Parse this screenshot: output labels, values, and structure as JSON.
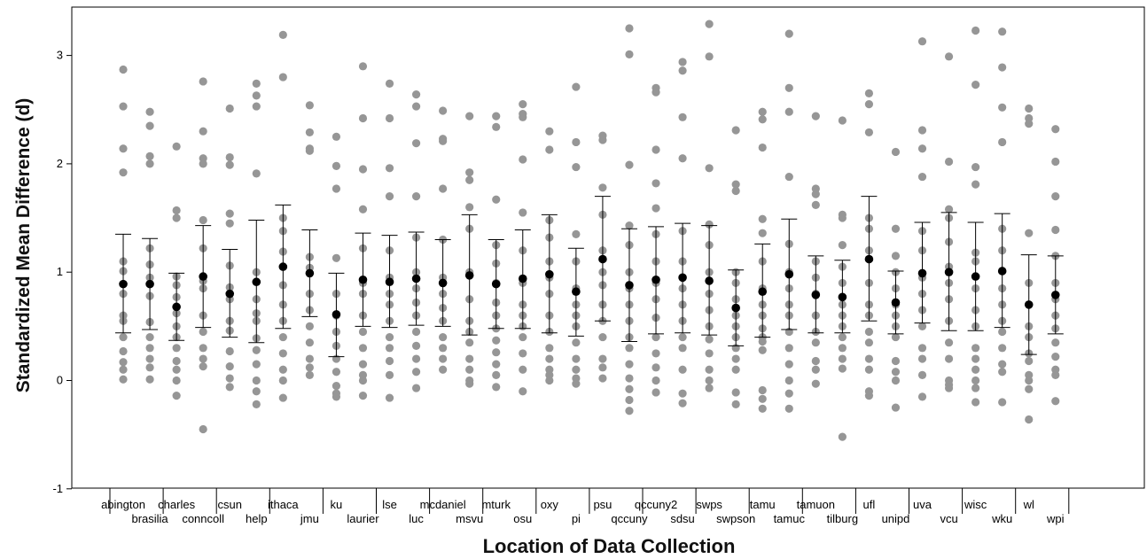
{
  "chart_data": {
    "type": "scatter",
    "xlabel": "Location of Data Collection",
    "ylabel": "Standardized Mean Difference (d)",
    "ylim": [
      -1,
      3.45
    ],
    "yticks": [
      -1,
      0,
      1,
      2,
      3
    ],
    "grid": false,
    "legend": "none",
    "colors": {
      "points": "#969696",
      "means": "#000000",
      "errorbars": "#000000",
      "axes": "#000000"
    },
    "sites": [
      {
        "name": "abington",
        "mean": 0.89,
        "ci": [
          0.44,
          1.35
        ],
        "points": [
          2.87,
          2.53,
          2.14,
          1.92,
          1.1,
          1.01,
          0.8,
          0.6,
          0.55,
          0.4,
          0.27,
          0.17,
          0.1,
          0.01
        ]
      },
      {
        "name": "brasilia",
        "mean": 0.89,
        "ci": [
          0.47,
          1.31
        ],
        "points": [
          2.48,
          2.35,
          2.07,
          2.0,
          1.22,
          1.07,
          0.95,
          0.78,
          0.54,
          0.4,
          0.3,
          0.2,
          0.12,
          0.01
        ]
      },
      {
        "name": "charles",
        "mean": 0.68,
        "ci": [
          0.37,
          0.99
        ],
        "points": [
          2.16,
          1.57,
          1.5,
          0.96,
          0.88,
          0.77,
          0.62,
          0.5,
          0.4,
          0.3,
          0.18,
          0.1,
          0.0,
          -0.14
        ]
      },
      {
        "name": "conncoll",
        "mean": 0.96,
        "ci": [
          0.49,
          1.43
        ],
        "points": [
          2.76,
          2.3,
          2.05,
          2.0,
          1.48,
          1.22,
          0.92,
          0.85,
          0.6,
          0.45,
          0.3,
          0.2,
          0.13,
          -0.45
        ]
      },
      {
        "name": "csun",
        "mean": 0.8,
        "ci": [
          0.4,
          1.21
        ],
        "points": [
          2.51,
          2.06,
          1.99,
          1.54,
          1.45,
          1.06,
          0.86,
          0.75,
          0.55,
          0.46,
          0.27,
          0.13,
          0.02,
          -0.06
        ]
      },
      {
        "name": "help",
        "mean": 0.91,
        "ci": [
          0.35,
          1.48
        ],
        "points": [
          2.74,
          2.63,
          2.53,
          1.91,
          1.0,
          0.75,
          0.62,
          0.55,
          0.39,
          0.28,
          0.15,
          0.0,
          -0.1,
          -0.22
        ]
      },
      {
        "name": "ithaca",
        "mean": 1.05,
        "ci": [
          0.48,
          1.62
        ],
        "points": [
          3.19,
          2.8,
          1.5,
          1.38,
          1.19,
          1.05,
          0.88,
          0.7,
          0.55,
          0.4,
          0.25,
          0.1,
          0.0,
          -0.16
        ]
      },
      {
        "name": "jmu",
        "mean": 0.99,
        "ci": [
          0.59,
          1.39
        ],
        "points": [
          2.54,
          2.29,
          2.14,
          2.12,
          1.14,
          1.04,
          0.8,
          0.65,
          0.5,
          0.35,
          0.2,
          0.12,
          0.05
        ]
      },
      {
        "name": "ku",
        "mean": 0.61,
        "ci": [
          0.22,
          0.99
        ],
        "points": [
          2.25,
          1.98,
          1.77,
          1.13,
          0.8,
          0.6,
          0.45,
          0.32,
          0.2,
          0.08,
          -0.05,
          -0.12,
          -0.15
        ]
      },
      {
        "name": "laurier",
        "mean": 0.93,
        "ci": [
          0.5,
          1.36
        ],
        "points": [
          2.9,
          2.42,
          1.95,
          1.58,
          1.22,
          0.9,
          0.8,
          0.6,
          0.45,
          0.3,
          0.15,
          0.05,
          0.0,
          -0.14
        ]
      },
      {
        "name": "lse",
        "mean": 0.91,
        "ci": [
          0.49,
          1.34
        ],
        "points": [
          2.74,
          2.42,
          1.96,
          1.7,
          1.2,
          0.95,
          0.8,
          0.7,
          0.55,
          0.4,
          0.3,
          0.18,
          0.05,
          -0.16
        ]
      },
      {
        "name": "luc",
        "mean": 0.94,
        "ci": [
          0.51,
          1.37
        ],
        "points": [
          2.64,
          2.53,
          2.19,
          1.7,
          1.32,
          1.0,
          0.85,
          0.72,
          0.6,
          0.45,
          0.32,
          0.2,
          0.08,
          -0.07
        ]
      },
      {
        "name": "mcdaniel",
        "mean": 0.9,
        "ci": [
          0.5,
          1.3
        ],
        "points": [
          2.49,
          2.23,
          2.21,
          1.77,
          1.3,
          0.95,
          0.8,
          0.67,
          0.55,
          0.4,
          0.3,
          0.2,
          0.1
        ]
      },
      {
        "name": "msvu",
        "mean": 0.97,
        "ci": [
          0.42,
          1.53
        ],
        "points": [
          2.44,
          1.92,
          1.85,
          1.6,
          1.4,
          1.0,
          0.75,
          0.55,
          0.45,
          0.35,
          0.2,
          0.1,
          0.0,
          -0.03
        ]
      },
      {
        "name": "mturk",
        "mean": 0.89,
        "ci": [
          0.48,
          1.3
        ],
        "points": [
          2.44,
          2.34,
          1.67,
          1.25,
          1.08,
          0.9,
          0.72,
          0.6,
          0.48,
          0.37,
          0.26,
          0.15,
          0.05,
          -0.06
        ]
      },
      {
        "name": "osu",
        "mean": 0.94,
        "ci": [
          0.48,
          1.39
        ],
        "points": [
          2.55,
          2.46,
          2.43,
          2.04,
          1.55,
          1.2,
          0.9,
          0.7,
          0.6,
          0.5,
          0.4,
          0.25,
          0.1,
          -0.1
        ]
      },
      {
        "name": "oxy",
        "mean": 0.98,
        "ci": [
          0.44,
          1.53
        ],
        "points": [
          2.3,
          2.13,
          1.48,
          1.32,
          1.1,
          0.95,
          0.8,
          0.6,
          0.45,
          0.3,
          0.2,
          0.1,
          0.05,
          0.0
        ]
      },
      {
        "name": "pi",
        "mean": 0.82,
        "ci": [
          0.41,
          1.22
        ],
        "points": [
          2.71,
          2.2,
          1.97,
          1.35,
          1.1,
          0.85,
          0.7,
          0.6,
          0.5,
          0.35,
          0.2,
          0.1,
          0.02,
          -0.03
        ]
      },
      {
        "name": "psu",
        "mean": 1.12,
        "ci": [
          0.55,
          1.7
        ],
        "points": [
          2.26,
          2.22,
          1.78,
          1.53,
          1.2,
          1.0,
          0.88,
          0.7,
          0.55,
          0.4,
          0.2,
          0.12,
          0.02
        ]
      },
      {
        "name": "qccuny",
        "mean": 0.88,
        "ci": [
          0.36,
          1.4
        ],
        "points": [
          3.25,
          3.01,
          1.99,
          1.43,
          1.25,
          1.0,
          0.85,
          0.7,
          0.55,
          0.4,
          0.3,
          0.15,
          0.02,
          -0.08,
          -0.18,
          -0.28
        ]
      },
      {
        "name": "qccuny2",
        "mean": 0.93,
        "ci": [
          0.43,
          1.42
        ],
        "points": [
          2.7,
          2.66,
          2.13,
          1.82,
          1.59,
          1.35,
          1.1,
          0.9,
          0.75,
          0.58,
          0.4,
          0.25,
          0.12,
          0.0,
          -0.11
        ]
      },
      {
        "name": "sdsu",
        "mean": 0.95,
        "ci": [
          0.44,
          1.45
        ],
        "points": [
          2.94,
          2.86,
          2.43,
          2.05,
          1.38,
          1.1,
          0.85,
          0.7,
          0.55,
          0.4,
          0.3,
          0.1,
          -0.12,
          -0.21
        ]
      },
      {
        "name": "swps",
        "mean": 0.92,
        "ci": [
          0.42,
          1.43
        ],
        "points": [
          3.29,
          2.99,
          1.96,
          1.44,
          1.25,
          1.0,
          0.8,
          0.65,
          0.5,
          0.38,
          0.25,
          0.1,
          0.0,
          -0.07
        ]
      },
      {
        "name": "swpson",
        "mean": 0.67,
        "ci": [
          0.32,
          1.02
        ],
        "points": [
          2.31,
          1.81,
          1.75,
          1.0,
          0.9,
          0.75,
          0.6,
          0.5,
          0.4,
          0.3,
          0.2,
          0.1,
          -0.11,
          -0.22
        ]
      },
      {
        "name": "tamu",
        "mean": 0.82,
        "ci": [
          0.4,
          1.26
        ],
        "points": [
          2.48,
          2.41,
          2.15,
          1.49,
          1.36,
          1.1,
          0.85,
          0.7,
          0.6,
          0.48,
          0.4,
          0.36,
          0.28,
          -0.09,
          -0.17,
          -0.26
        ]
      },
      {
        "name": "tamuc",
        "mean": 0.98,
        "ci": [
          0.47,
          1.49
        ],
        "points": [
          3.2,
          2.7,
          2.48,
          1.88,
          1.26,
          1.0,
          0.85,
          0.7,
          0.6,
          0.45,
          0.3,
          0.15,
          0.0,
          -0.12,
          -0.26
        ]
      },
      {
        "name": "tamuon",
        "mean": 0.79,
        "ci": [
          0.44,
          1.15
        ],
        "points": [
          2.44,
          1.77,
          1.72,
          1.62,
          1.1,
          0.95,
          0.8,
          0.6,
          0.45,
          0.35,
          0.18,
          0.1,
          -0.03
        ]
      },
      {
        "name": "tilburg",
        "mean": 0.77,
        "ci": [
          0.44,
          1.11
        ],
        "points": [
          2.4,
          1.53,
          1.5,
          1.25,
          1.05,
          0.9,
          0.7,
          0.6,
          0.5,
          0.4,
          0.3,
          0.2,
          0.11,
          -0.52
        ]
      },
      {
        "name": "ufl",
        "mean": 1.12,
        "ci": [
          0.55,
          1.7
        ],
        "points": [
          2.65,
          2.55,
          2.29,
          1.5,
          1.4,
          1.2,
          0.9,
          0.7,
          0.6,
          0.45,
          0.35,
          0.2,
          0.1,
          -0.1,
          -0.14
        ]
      },
      {
        "name": "unipd",
        "mean": 0.72,
        "ci": [
          0.43,
          1.01
        ],
        "points": [
          2.11,
          1.4,
          1.15,
          1.0,
          0.85,
          0.7,
          0.6,
          0.5,
          0.4,
          0.18,
          0.08,
          0.0,
          -0.25
        ]
      },
      {
        "name": "uva",
        "mean": 0.99,
        "ci": [
          0.53,
          1.46
        ],
        "points": [
          3.13,
          2.31,
          2.14,
          1.88,
          1.38,
          1.2,
          0.95,
          0.8,
          0.65,
          0.5,
          0.3,
          0.2,
          0.05,
          -0.15
        ]
      },
      {
        "name": "vcu",
        "mean": 1.0,
        "ci": [
          0.46,
          1.55
        ],
        "points": [
          2.99,
          2.02,
          1.58,
          1.5,
          1.28,
          1.05,
          0.9,
          0.75,
          0.55,
          0.35,
          0.2,
          0.0,
          -0.04,
          -0.07
        ]
      },
      {
        "name": "wisc",
        "mean": 0.96,
        "ci": [
          0.46,
          1.46
        ],
        "points": [
          3.23,
          2.73,
          1.97,
          1.81,
          1.18,
          1.1,
          0.85,
          0.65,
          0.5,
          0.3,
          0.2,
          0.1,
          0.0,
          -0.07,
          -0.2
        ]
      },
      {
        "name": "wku",
        "mean": 1.01,
        "ci": [
          0.49,
          1.54
        ],
        "points": [
          3.22,
          2.89,
          2.52,
          2.2,
          1.4,
          1.2,
          0.85,
          0.7,
          0.55,
          0.45,
          0.3,
          0.15,
          0.08,
          -0.2
        ]
      },
      {
        "name": "wl",
        "mean": 0.7,
        "ci": [
          0.24,
          1.16
        ],
        "points": [
          2.51,
          2.42,
          2.37,
          1.36,
          0.9,
          0.7,
          0.5,
          0.4,
          0.25,
          0.18,
          0.05,
          0.0,
          -0.08,
          -0.36
        ]
      },
      {
        "name": "wpi",
        "mean": 0.79,
        "ci": [
          0.43,
          1.15
        ],
        "points": [
          2.32,
          2.02,
          1.7,
          1.39,
          1.15,
          0.9,
          0.75,
          0.6,
          0.48,
          0.35,
          0.22,
          0.1,
          0.05,
          -0.19
        ]
      }
    ]
  }
}
